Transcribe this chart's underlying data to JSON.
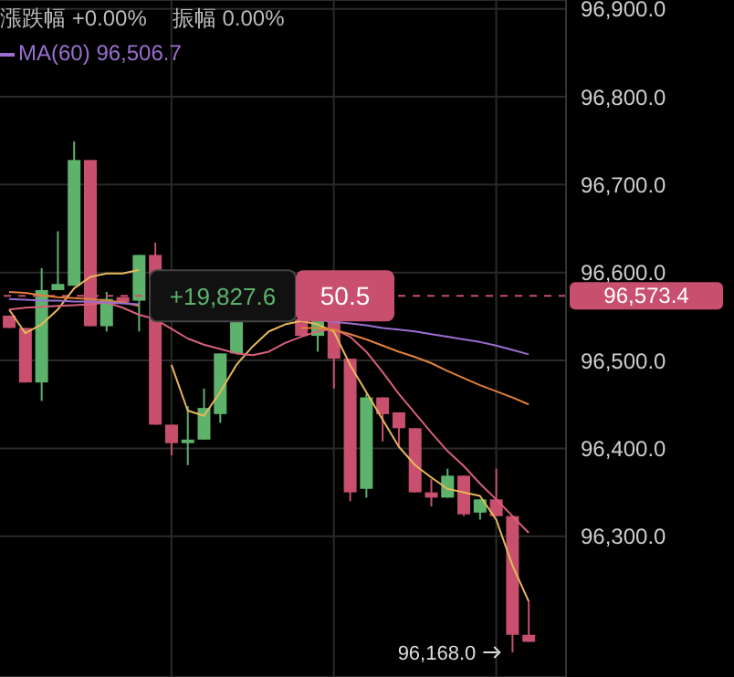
{
  "chart_data": {
    "type": "candlestick",
    "categories": [
      null,
      null,
      null,
      null,
      null,
      null,
      null,
      null,
      null,
      null,
      null,
      null,
      null,
      null,
      null,
      null,
      null,
      null,
      null,
      null,
      null,
      null,
      null,
      null,
      null,
      null,
      null,
      null,
      null,
      null,
      null,
      null,
      null
    ],
    "ohlc": [
      [
        96551,
        96551,
        96537,
        96537
      ],
      [
        96537,
        96537,
        96475,
        96475
      ],
      [
        96475,
        96605,
        96454,
        96580
      ],
      [
        96580,
        96647,
        96580,
        96587
      ],
      [
        96585,
        96749,
        96585,
        96728
      ],
      [
        96728,
        96728,
        96539,
        96539
      ],
      [
        96539,
        96578,
        96533,
        96570
      ],
      [
        96572,
        96572,
        96566,
        96566
      ],
      [
        96568,
        96620,
        96533,
        96620
      ],
      [
        96620,
        96634,
        96427,
        96427
      ],
      [
        96427,
        96427,
        96392,
        96406
      ],
      [
        96406,
        96448,
        96381,
        96410
      ],
      [
        96410,
        96468,
        96410,
        96446
      ],
      [
        96439,
        96508,
        96429,
        96508
      ],
      [
        96508,
        96547,
        96508,
        96547
      ],
      null,
      null,
      null,
      [
        96547,
        96547,
        96528,
        96528
      ],
      [
        96528,
        96547,
        96510,
        96547
      ],
      [
        96547,
        96547,
        96468,
        96502
      ],
      [
        96502,
        96502,
        96340,
        96350
      ],
      [
        96354,
        96462,
        96344,
        96458
      ],
      [
        96458,
        96458,
        96408,
        96439
      ],
      [
        96441,
        96441,
        96402,
        96423
      ],
      [
        96423,
        96423,
        96350,
        96350
      ],
      [
        96350,
        96365,
        96334,
        96344
      ],
      [
        96344,
        96377,
        96344,
        96369
      ],
      [
        96369,
        96369,
        96323,
        96325
      ],
      [
        96327,
        96342,
        96319,
        96342
      ],
      [
        96342,
        96377,
        96323,
        96323
      ],
      [
        96323,
        96323,
        96168,
        96188
      ],
      [
        96188,
        96226,
        96180,
        96180
      ]
    ],
    "colors": [
      "#c8506e",
      "#c8506e",
      "#5db36c",
      "#5db36c",
      "#5db36c",
      "#c8506e",
      "#5db36c",
      "#c8506e",
      "#5db36c",
      "#c8506e",
      "#c8506e",
      "#5db36c",
      "#5db36c",
      "#5db36c",
      "#5db36c",
      null,
      null,
      null,
      "#c8506e",
      "#5db36c",
      "#c8506e",
      "#c8506e",
      "#5db36c",
      "#c8506e",
      "#c8506e",
      "#c8506e",
      "#c8506e",
      "#5db36c",
      "#c8506e",
      "#5db36c",
      "#c8506e",
      "#c8506e",
      "#c8506e"
    ],
    "series": [
      {
        "type": "line",
        "color": "#e8b85a",
        "values": [
          96558,
          96531,
          96541,
          96558,
          96582,
          96595,
          96599,
          96599,
          96603,
          null,
          96495,
          96443,
          96437,
          96464,
          96495,
          96516,
          96533,
          96541,
          96545,
          96541,
          96533,
          96495,
          96464,
          96433,
          96402,
          96381,
          96367,
          96354,
          96350,
          96346,
          96319,
          96267,
          96226
        ]
      },
      {
        "type": "line",
        "color": "#d8607a",
        "values": [
          96558,
          96560,
          96561,
          96562,
          96563,
          96564,
          96566,
          96560,
          96552,
          96547,
          96536,
          96525,
          96518,
          96513,
          96508,
          96506,
          96510,
          96520,
          96527,
          96533,
          96536,
          96527,
          96510,
          96487,
          96462,
          96440,
          96418,
          96397,
          96380,
          96360,
          96342,
          96323,
          96304
        ]
      },
      {
        "type": "line",
        "color": "#e0803a",
        "values": [
          96578,
          96577,
          96574,
          96572,
          96571,
          96570,
          96568,
          96566,
          96562,
          null,
          null,
          null,
          null,
          null,
          null,
          null,
          null,
          null,
          96537,
          96537,
          96535,
          96530,
          96524,
          96517,
          96510,
          96504,
          96497,
          96488,
          96480,
          96472,
          96465,
          96458,
          96450
        ]
      },
      {
        "type": "line",
        "name": "MA(60)",
        "color": "#9a6fd0",
        "values": [
          96570,
          96569,
          96568,
          96568,
          96567,
          96567,
          96566,
          96565,
          96564,
          null,
          null,
          null,
          null,
          null,
          null,
          null,
          null,
          null,
          null,
          96546,
          96544,
          96542,
          96540,
          96537,
          96535,
          96533,
          96530,
          96527,
          96524,
          96521,
          96517,
          96512,
          96507
        ]
      }
    ],
    "ylim": [
      96140,
      96910
    ],
    "yticks": [
      {
        "value": 96300,
        "label": "96,300.0"
      },
      {
        "value": 96400,
        "label": "96,400.0"
      },
      {
        "value": 96500,
        "label": "96,500.0"
      },
      {
        "value": 96600,
        "label": "96,600.0"
      },
      {
        "value": 96700,
        "label": "96,700.0"
      },
      {
        "value": 96800,
        "label": "96,800.0"
      },
      {
        "value": 96900,
        "label": "96,900.0"
      }
    ],
    "grid": true,
    "legend": "top left",
    "ref_lines": [
      {
        "axis": "y",
        "value": 96573.4,
        "label": "96,573.4",
        "color": "#c8506e",
        "line_style": "dashed"
      }
    ],
    "annotations": [
      "漲跌幅 +0.00%",
      "振幅 0.00%",
      "96,506.7",
      "+19,827.6",
      "50.5",
      "96,168.0"
    ]
  }
}
